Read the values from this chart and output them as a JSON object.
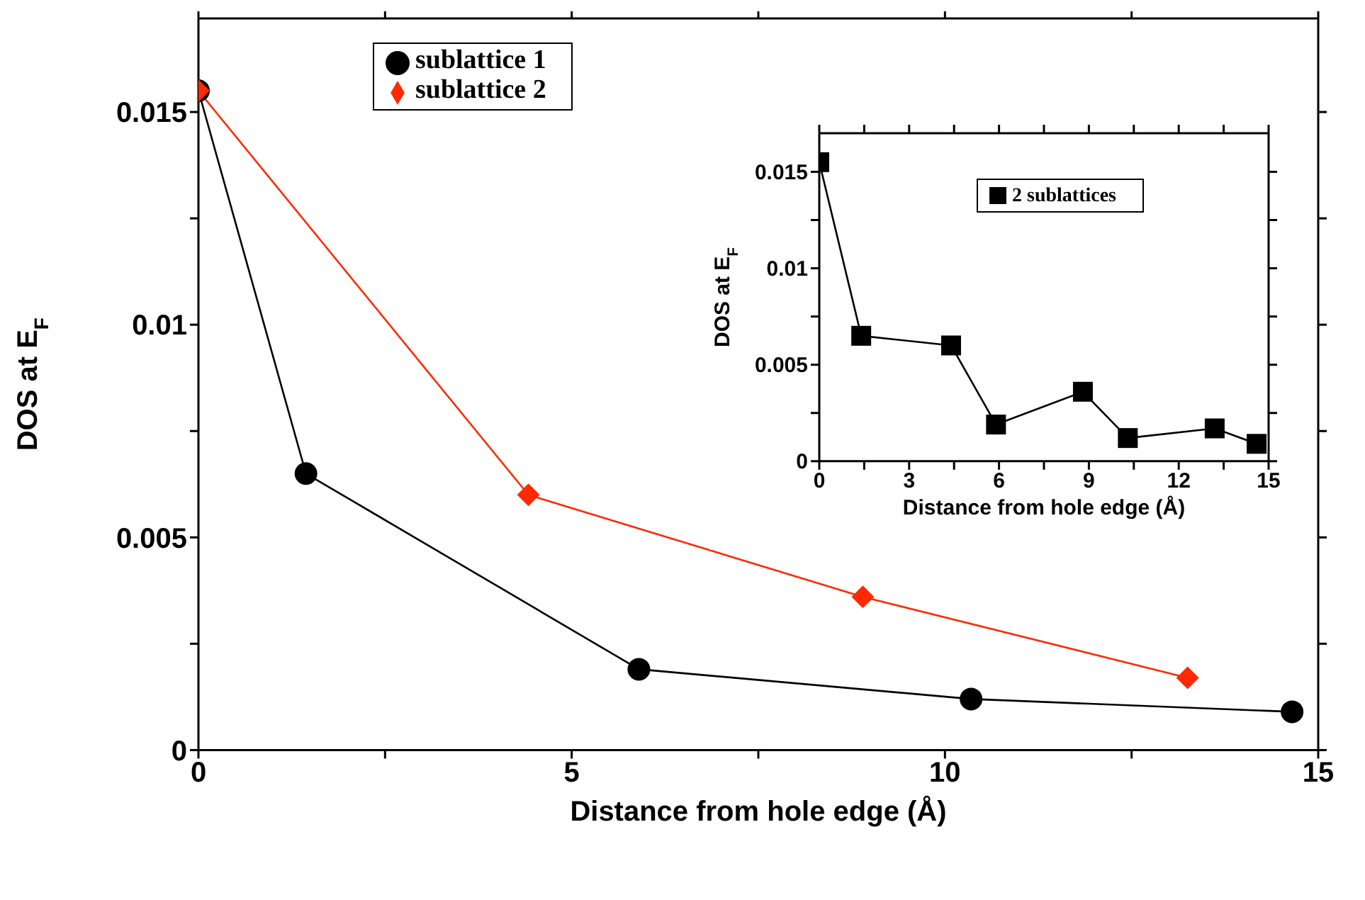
{
  "chart_data": [
    {
      "type": "line",
      "xlabel": "Distance from hole edge (Å)",
      "ylabel": "DOS at E$_{F}$",
      "xlim": [
        0,
        15
      ],
      "ylim": [
        0,
        0.0172
      ],
      "xticks": [
        0,
        {
          "value": 2.5,
          "label": null
        },
        5,
        {
          "value": 7.5,
          "label": null
        },
        10,
        {
          "value": 12.5,
          "label": null
        },
        15
      ],
      "yticks": [
        0,
        {
          "value": 0.0025,
          "label": null
        },
        0.005,
        {
          "value": 0.0075,
          "label": null
        },
        0.01,
        {
          "value": 0.0125,
          "label": null
        },
        0.015
      ],
      "legend": "top left",
      "line_style": "solid",
      "series": [
        {
          "name": "sublattice 1",
          "color": "#000000",
          "marker": "circle",
          "x": [
            0,
            1.44,
            5.9,
            10.35,
            14.65
          ],
          "values": [
            0.0155,
            0.0065,
            0.0019,
            0.0012,
            0.0009
          ]
        },
        {
          "name": "sublattice 2",
          "color": "#ff2a00",
          "marker": "diamond",
          "x": [
            0,
            4.42,
            8.9,
            13.25
          ],
          "values": [
            0.0155,
            0.006,
            0.0036,
            0.0017
          ]
        }
      ]
    },
    {
      "type": "line",
      "xlabel": "Distance from hole edge (Å)",
      "ylabel": "DOS at E$_{F}$",
      "xlim": [
        0,
        15
      ],
      "ylim": [
        0,
        0.017
      ],
      "xticks": [
        0,
        {
          "value": 1.5,
          "label": null
        },
        3,
        {
          "value": 4.5,
          "label": null
        },
        6,
        {
          "value": 7.5,
          "label": null
        },
        9,
        {
          "value": 10.5,
          "label": null
        },
        12,
        {
          "value": 13.5,
          "label": null
        },
        15
      ],
      "yticks": [
        0,
        {
          "value": 0.0025,
          "label": null
        },
        0.005,
        {
          "value": 0.0075,
          "label": null
        },
        0.01,
        {
          "value": 0.0125,
          "label": null
        },
        0.015
      ],
      "legend": "top right",
      "line_style": "solid",
      "series": [
        {
          "name": "2 sublattices",
          "color": "#000000",
          "marker": "square",
          "x": [
            0,
            1.4,
            4.4,
            5.9,
            8.8,
            10.3,
            13.2,
            14.6
          ],
          "values": [
            0.0155,
            0.0065,
            0.006,
            0.0019,
            0.0036,
            0.0012,
            0.0017,
            0.0009
          ]
        }
      ]
    }
  ]
}
